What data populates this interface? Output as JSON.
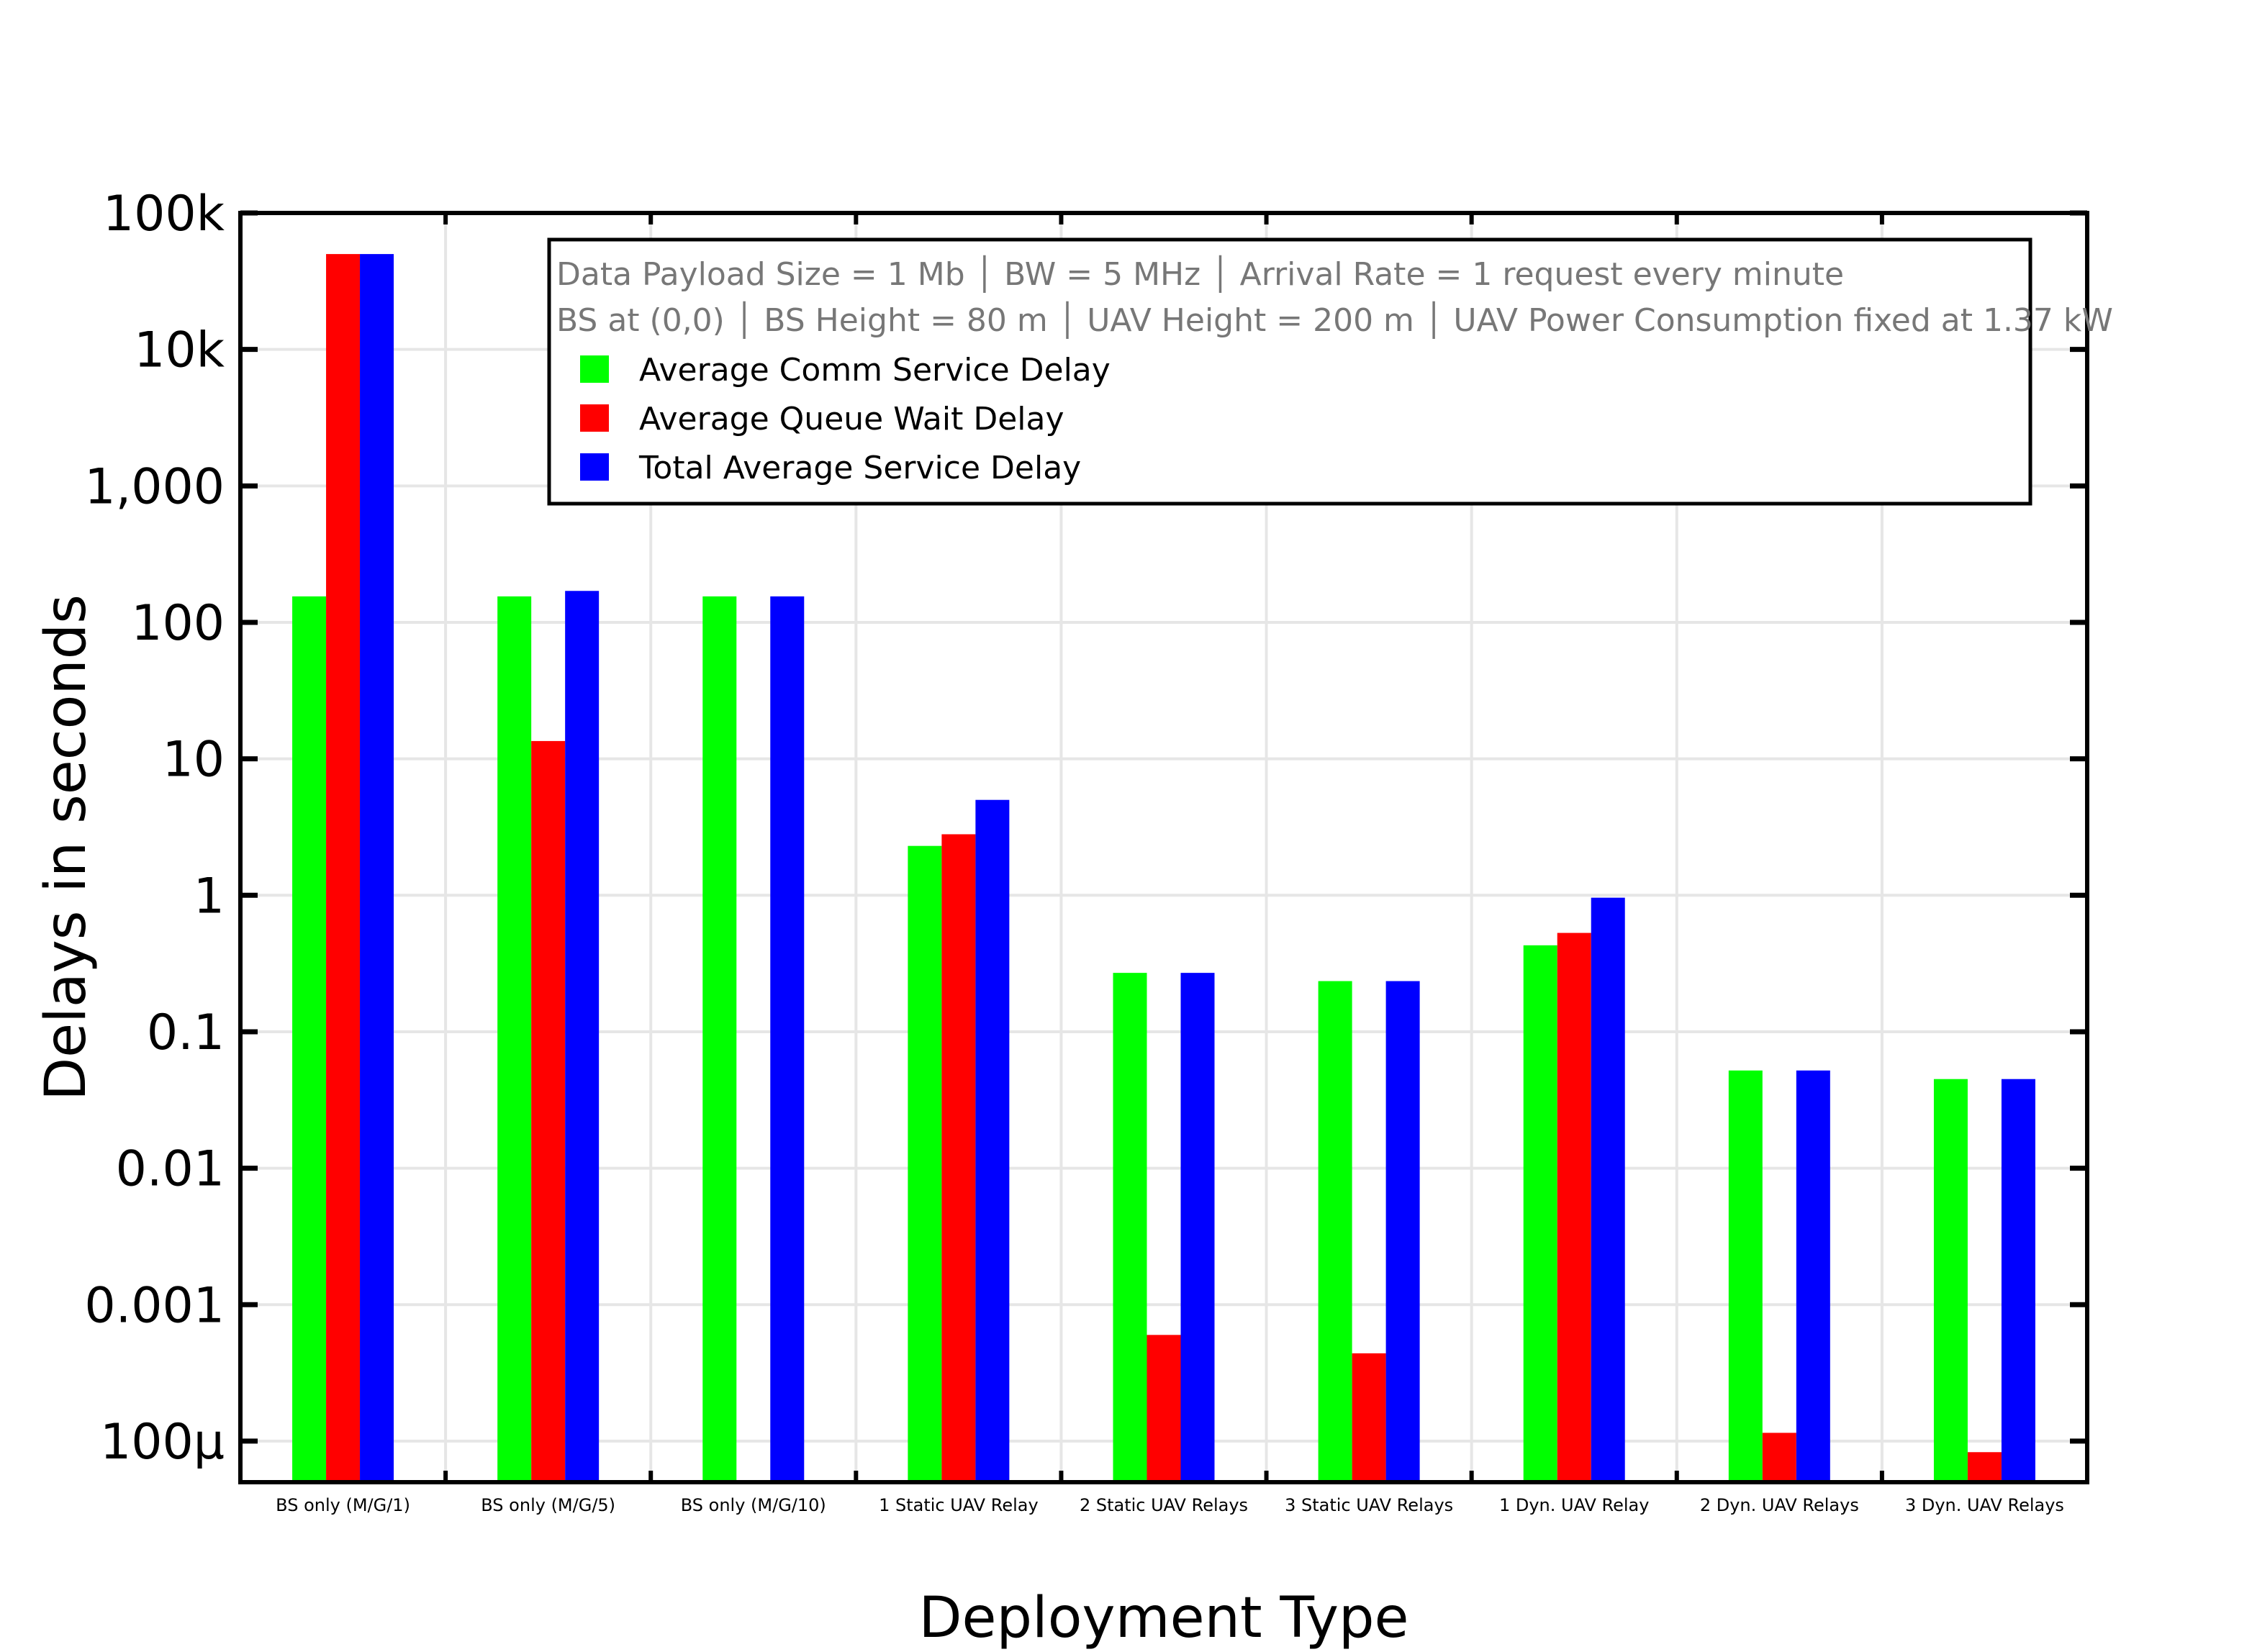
{
  "chart_data": {
    "type": "bar",
    "title": "",
    "xlabel": "Deployment Type",
    "ylabel": "Delays in seconds",
    "yscale": "log",
    "ylim": [
      5e-05,
      100000
    ],
    "grid": true,
    "legend_placement": "top-right",
    "yticks": [
      {
        "value": 100000,
        "label": "100k"
      },
      {
        "value": 10000,
        "label": "10k"
      },
      {
        "value": 1000,
        "label": "1,000"
      },
      {
        "value": 100,
        "label": "100"
      },
      {
        "value": 10,
        "label": "10"
      },
      {
        "value": 1,
        "label": "1"
      },
      {
        "value": 0.1,
        "label": "0.1"
      },
      {
        "value": 0.01,
        "label": "0.01"
      },
      {
        "value": 0.001,
        "label": "0.001"
      },
      {
        "value": 0.0001,
        "label": "100μ"
      }
    ],
    "categories": [
      "BS only (M/G/1)",
      "BS only (M/G/5)",
      "BS only (M/G/10)",
      "1 Static UAV Relay",
      "2 Static UAV Relays",
      "3 Static UAV Relays",
      "1 Dyn. UAV Relay",
      "2 Dyn. UAV Relays",
      "3 Dyn. UAV Relays"
    ],
    "series": [
      {
        "name": "Average Comm Service Delay",
        "color": "#00ff00",
        "values": [
          155,
          155,
          155,
          2.3,
          0.27,
          0.235,
          0.43,
          0.052,
          0.045
        ]
      },
      {
        "name": "Average Queue Wait Delay",
        "color": "#ff0000",
        "values": [
          50000,
          13.5,
          0,
          2.8,
          0.0006,
          0.00044,
          0.53,
          0.000115,
          8.3e-05
        ]
      },
      {
        "name": "Total Average Service Delay",
        "color": "#0000ff",
        "values": [
          50000,
          170,
          155,
          5.0,
          0.27,
          0.235,
          0.96,
          0.052,
          0.045
        ]
      }
    ],
    "legend": {
      "info_lines": [
        "Data Payload Size = 1 Mb │ BW = 5 MHz │ Arrival Rate = 1 request every minute",
        "BS at (0,0) │ BS Height = 80 m │ UAV Height = 200 m │ UAV Power Consumption fixed at 1.37 kW"
      ]
    }
  }
}
